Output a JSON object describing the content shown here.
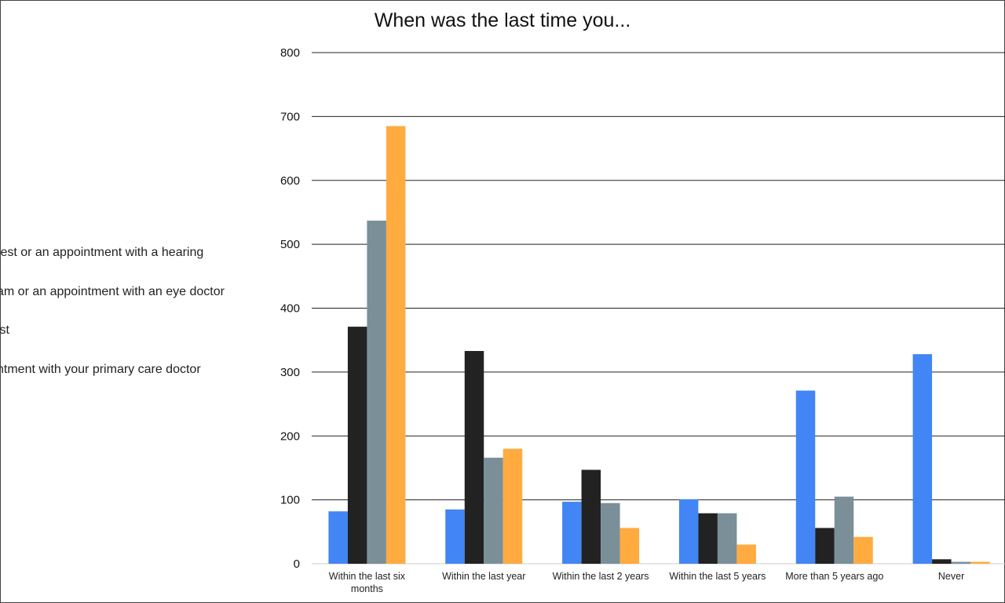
{
  "chart_data": {
    "type": "bar",
    "title": "When was the last time you...",
    "categories": [
      "Within the last six months",
      "Within the last year",
      "Within the last 2 years",
      "Within the last 5 years",
      "More than 5 years ago",
      "Never"
    ],
    "category_lines": [
      [
        "Within the last six",
        "months"
      ],
      [
        "Within the last year"
      ],
      [
        "Within the last 2 years"
      ],
      [
        "Within the last 5 years"
      ],
      [
        "More than 5 years ago"
      ],
      [
        "Never"
      ]
    ],
    "ylim": [
      0,
      800
    ],
    "yticks": [
      0,
      100,
      200,
      300,
      400,
      500,
      600,
      700,
      800
    ],
    "grid": true,
    "legend_position": "left",
    "series": [
      {
        "name": "test or an appointment with a hearing",
        "color": "#4285f4",
        "values": [
          82,
          85,
          97,
          101,
          271,
          328
        ]
      },
      {
        "name": "am or an appointment with an eye doctor",
        "color": "#222222",
        "values": [
          371,
          333,
          147,
          79,
          56,
          7
        ]
      },
      {
        "name": "ist",
        "color": "#7b8f99",
        "values": [
          537,
          166,
          95,
          79,
          105,
          3
        ]
      },
      {
        "name": "ntment with your primary care doctor",
        "color": "#ffab40",
        "values": [
          685,
          180,
          56,
          30,
          42,
          3
        ]
      }
    ]
  }
}
